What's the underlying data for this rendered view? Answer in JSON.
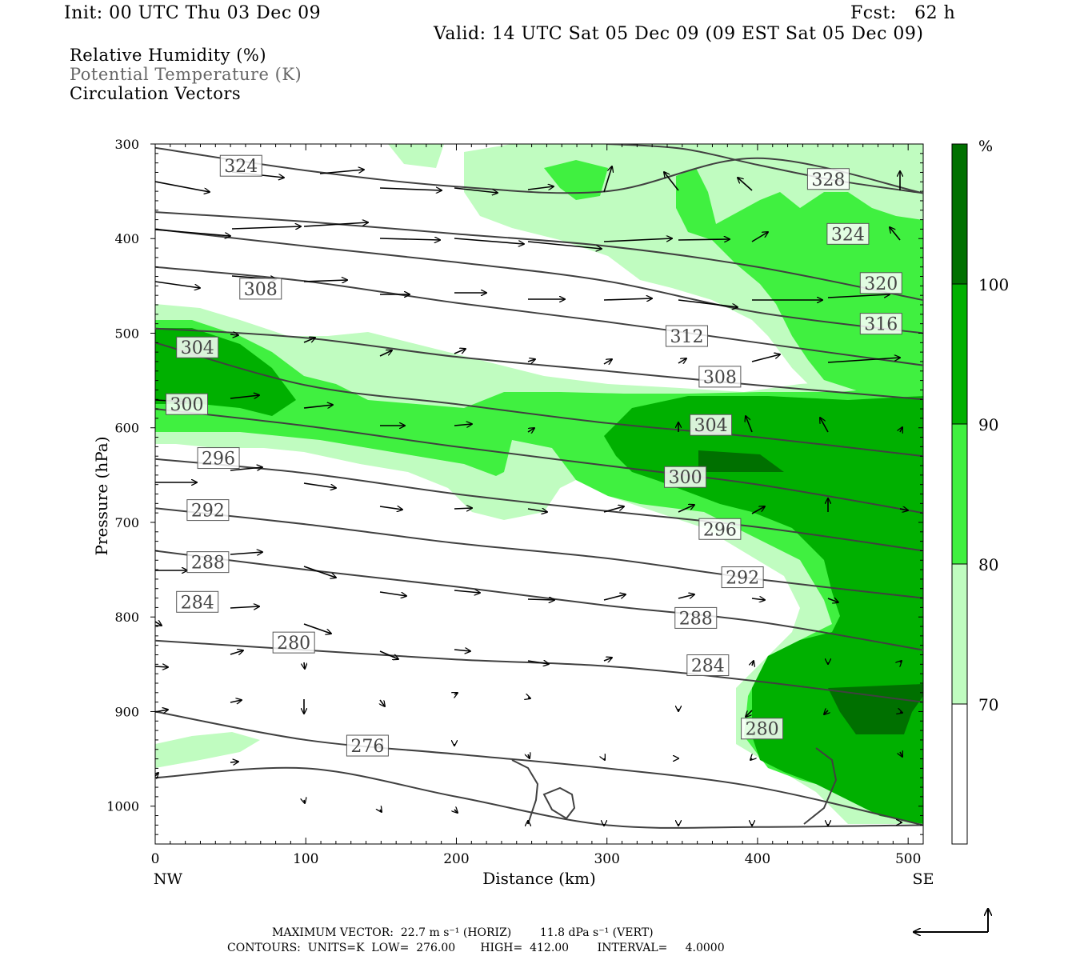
{
  "header": {
    "init": "Init: 00 UTC Thu 03 Dec 09",
    "fcst": "Fcst:   62 h",
    "valid": "Valid: 14 UTC Sat 05 Dec 09 (09 EST Sat 05 Dec 09)"
  },
  "legend_text": {
    "line1": "Relative Humidity (%)",
    "line2": "Potential Temperature (K)",
    "line3": "Circulation Vectors"
  },
  "footer": {
    "line1": "MAXIMUM VECTOR:  22.7 m s⁻¹ (HORIZ)        11.8 dPa s⁻¹ (VERT)",
    "line2": "CONTOURS:  UNITS=K  LOW=  276.00       HIGH=  412.00        INTERVAL=     4.0000"
  },
  "colors": {
    "rh_70_80": "#c0fcc0",
    "rh_80_90": "#40f040",
    "rh_90_100": "#00b000",
    "rh_100": "#007000",
    "theta_line": "#404040",
    "label_text": "#444444"
  },
  "chart_data": {
    "type": "contour",
    "xlabel": "Distance (km)",
    "ylabel": "Pressure (hPa)",
    "xlim": [
      0,
      510
    ],
    "ylim": [
      1040,
      300
    ],
    "x_ticks": [
      0,
      100,
      200,
      300,
      400,
      500
    ],
    "y_ticks": [
      300,
      400,
      500,
      600,
      700,
      800,
      900,
      1000
    ],
    "x_end_labels": [
      "NW",
      "SE"
    ],
    "colorbar": {
      "unit": "%",
      "levels": [
        70,
        80,
        90,
        100
      ],
      "colors": [
        "#ffffff",
        "#c0fcc0",
        "#40f040",
        "#00b000",
        "#007000"
      ]
    },
    "theta_contours": [
      {
        "label": "324",
        "x": [
          0,
          100,
          200,
          300,
          400,
          510
        ],
        "p": [
          304,
          328,
          345,
          350,
          315,
          352
        ]
      },
      {
        "label": "328",
        "x": [
          300,
          350,
          400,
          450,
          510
        ],
        "p": [
          300,
          305,
          322,
          338,
          352
        ]
      },
      {
        "label": "320",
        "x": [
          0,
          100,
          200,
          300,
          400,
          510
        ],
        "p": [
          372,
          382,
          395,
          408,
          430,
          465
        ]
      },
      {
        "label": "316",
        "x": [
          0,
          100,
          200,
          300,
          400,
          510
        ],
        "p": [
          390,
          408,
          425,
          445,
          478,
          500
        ]
      },
      {
        "label": "312",
        "x": [
          0,
          100,
          200,
          300,
          400,
          510
        ],
        "p": [
          430,
          445,
          468,
          488,
          510,
          534
        ]
      },
      {
        "label": "308",
        "x": [
          0,
          100,
          200,
          300,
          400,
          510
        ],
        "p": [
          495,
          505,
          525,
          540,
          555,
          570
        ]
      },
      {
        "label": "304",
        "x": [
          0,
          100,
          200,
          300,
          400,
          510
        ],
        "p": [
          510,
          555,
          575,
          595,
          610,
          630
        ]
      },
      {
        "label": "300",
        "x": [
          0,
          100,
          200,
          300,
          400,
          510
        ],
        "p": [
          580,
          598,
          620,
          640,
          660,
          690
        ]
      },
      {
        "label": "296",
        "x": [
          0,
          100,
          200,
          300,
          400,
          510
        ],
        "p": [
          633,
          648,
          670,
          688,
          705,
          730
        ]
      },
      {
        "label": "292",
        "x": [
          0,
          100,
          200,
          300,
          400,
          510
        ],
        "p": [
          685,
          702,
          722,
          738,
          760,
          780
        ]
      },
      {
        "label": "288",
        "x": [
          0,
          100,
          200,
          300,
          400,
          510
        ],
        "p": [
          730,
          750,
          768,
          788,
          805,
          835
        ]
      },
      {
        "label": "284",
        "x": [
          0,
          100,
          200,
          300,
          400,
          510
        ],
        "p": [
          825,
          835,
          845,
          852,
          868,
          890
        ]
      },
      {
        "label": "280",
        "x": [
          0,
          100,
          200,
          300,
          400,
          510
        ],
        "p": [
          900,
          930,
          945,
          960,
          980,
          1020
        ]
      },
      {
        "label": "276",
        "x": [
          0,
          100,
          200,
          300,
          400,
          510
        ],
        "p": [
          970,
          960,
          990,
          1020,
          1022,
          1020
        ]
      }
    ],
    "theta_labels": [
      {
        "text": "324",
        "x": 57,
        "p": 323
      },
      {
        "text": "328",
        "x": 447,
        "p": 337
      },
      {
        "text": "324",
        "x": 460,
        "p": 395
      },
      {
        "text": "320",
        "x": 482,
        "p": 447
      },
      {
        "text": "316",
        "x": 482,
        "p": 490
      },
      {
        "text": "308",
        "x": 70,
        "p": 453
      },
      {
        "text": "312",
        "x": 353,
        "p": 503
      },
      {
        "text": "308",
        "x": 375,
        "p": 546
      },
      {
        "text": "304",
        "x": 28,
        "p": 515
      },
      {
        "text": "300",
        "x": 21,
        "p": 575
      },
      {
        "text": "304",
        "x": 369,
        "p": 597
      },
      {
        "text": "296",
        "x": 42,
        "p": 632
      },
      {
        "text": "300",
        "x": 352,
        "p": 652
      },
      {
        "text": "292",
        "x": 35,
        "p": 687
      },
      {
        "text": "296",
        "x": 375,
        "p": 707
      },
      {
        "text": "288",
        "x": 35,
        "p": 742
      },
      {
        "text": "292",
        "x": 390,
        "p": 758
      },
      {
        "text": "284",
        "x": 28,
        "p": 784
      },
      {
        "text": "288",
        "x": 359,
        "p": 801
      },
      {
        "text": "280",
        "x": 92,
        "p": 827
      },
      {
        "text": "284",
        "x": 367,
        "p": 851
      },
      {
        "text": "280",
        "x": 403,
        "p": 918
      },
      {
        "text": "276",
        "x": 141,
        "p": 936
      }
    ],
    "max_vector": {
      "horiz": "22.7 m s⁻¹",
      "vert": "11.8 dPa s⁻¹"
    },
    "contour_info": {
      "units": "K",
      "low": 276.0,
      "high": 412.0,
      "interval": 4.0
    }
  }
}
